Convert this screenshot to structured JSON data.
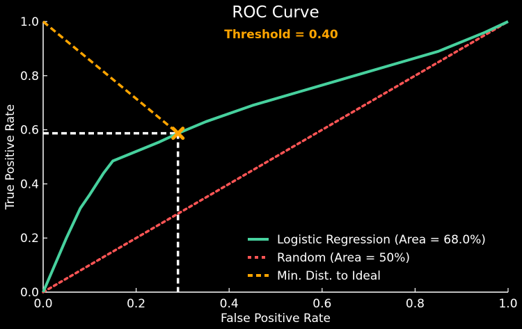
{
  "chart_data": {
    "type": "line",
    "title": "ROC Curve",
    "subtitle": "Threshold = 0.40",
    "xlabel": "False Positive Rate",
    "ylabel": "True Positive Rate",
    "xlim": [
      0.0,
      1.0
    ],
    "ylim": [
      0.0,
      1.0
    ],
    "xticks": [
      "0.0",
      "0.2",
      "0.4",
      "0.6",
      "0.8",
      "1.0"
    ],
    "yticks": [
      "0.0",
      "0.2",
      "0.4",
      "0.6",
      "0.8",
      "1.0"
    ],
    "grid": false,
    "legend_position": "lower-right",
    "series": [
      {
        "name": "Logistic Regression (Area = 68.0%)",
        "color": "#47d19e",
        "style": "solid",
        "x": [
          0.0,
          0.02,
          0.05,
          0.08,
          0.1,
          0.13,
          0.15,
          0.2,
          0.25,
          0.29,
          0.35,
          0.45,
          0.55,
          0.65,
          0.75,
          0.85,
          0.95,
          1.0
        ],
        "y": [
          0.0,
          0.08,
          0.2,
          0.31,
          0.36,
          0.44,
          0.485,
          0.52,
          0.555,
          0.587,
          0.63,
          0.69,
          0.74,
          0.79,
          0.84,
          0.89,
          0.96,
          1.0
        ]
      },
      {
        "name": "Random (Area = 50%)",
        "color": "#ff5555",
        "style": "dotted",
        "x": [
          0.0,
          1.0
        ],
        "y": [
          0.0,
          1.0
        ]
      },
      {
        "name": "Min. Dist. to Ideal",
        "color": "#ffa500",
        "style": "dashed",
        "x": [
          0.0,
          0.29
        ],
        "y": [
          1.0,
          0.587
        ]
      }
    ],
    "marker": {
      "x": 0.29,
      "y": 0.587,
      "symbol": "X",
      "color": "#ffa500"
    },
    "guide_lines": {
      "color": "#ffffff",
      "style": "dashed"
    }
  }
}
